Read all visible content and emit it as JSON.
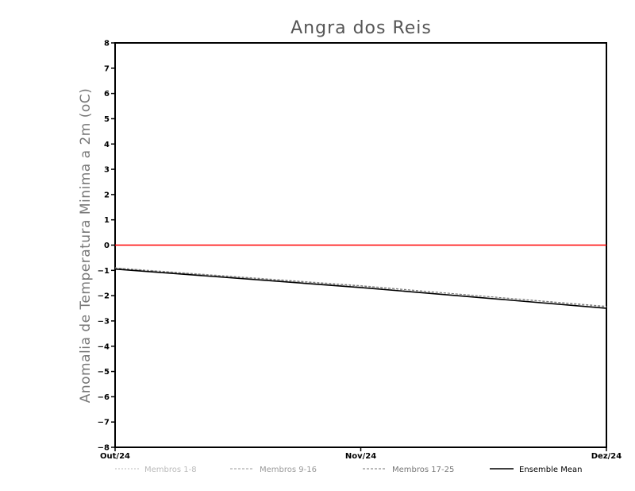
{
  "chart_data": {
    "type": "line",
    "title": "Angra dos Reis",
    "ylabel": "Anomalia de Temperatura Minima a 2m (oC)",
    "xlabel": "",
    "categories": [
      "Out/24",
      "Nov/24",
      "Dez/24"
    ],
    "ylim": [
      -8,
      8
    ],
    "yticks": [
      8,
      7,
      6,
      5,
      4,
      3,
      2,
      1,
      0,
      -1,
      -2,
      -3,
      -4,
      -5,
      -6,
      -7,
      -8
    ],
    "reference_line": {
      "y": 0,
      "color": "#ff0000"
    },
    "series": [
      {
        "name": "Membros 1-8",
        "values": [
          -0.9,
          -1.65,
          -2.5
        ],
        "color": "#bbbbbb",
        "style": "dotted"
      },
      {
        "name": "Membros 9-16",
        "values": [
          -0.9,
          -1.6,
          -2.45
        ],
        "color": "#999999",
        "style": "dashed"
      },
      {
        "name": "Membros 17-25",
        "values": [
          -0.92,
          -1.62,
          -2.42
        ],
        "color": "#777777",
        "style": "dashed"
      },
      {
        "name": "Ensemble Mean",
        "values": [
          -0.95,
          -1.68,
          -2.5
        ],
        "color": "#000000",
        "style": "solid"
      }
    ],
    "legend_position": "bottom"
  }
}
